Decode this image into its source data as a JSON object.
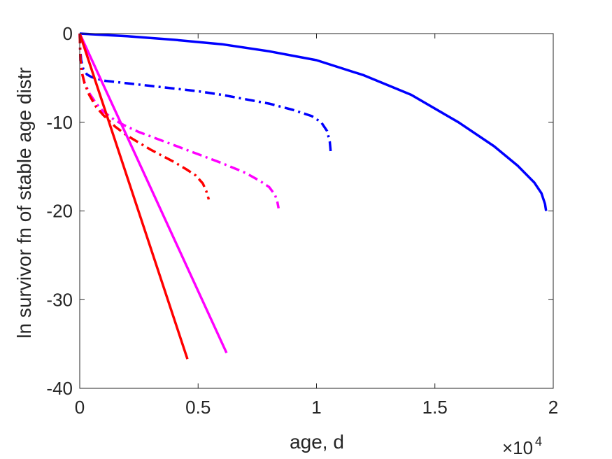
{
  "chart_data": {
    "type": "line",
    "xlabel": "age, d",
    "ylabel": "ln survivor fn of stable age distr",
    "x_exponent_label": "×10",
    "x_exponent_power": "4",
    "xlim": [
      0,
      20000
    ],
    "ylim": [
      -40,
      0
    ],
    "x_ticks": [
      0,
      5000,
      10000,
      15000,
      20000
    ],
    "x_tick_labels": [
      "0",
      "0.5",
      "1",
      "1.5",
      "2"
    ],
    "y_ticks": [
      0,
      -10,
      -20,
      -30,
      -40
    ],
    "y_tick_labels": [
      "0",
      "-10",
      "-20",
      "-30",
      "-40"
    ],
    "grid": false,
    "series": [
      {
        "color": "#0000ff",
        "style": "solid",
        "x": [
          0,
          1000,
          2000,
          4000,
          6000,
          8000,
          10000,
          12000,
          14000,
          16000,
          17500,
          18500,
          19200,
          19500,
          19650,
          19700
        ],
        "y": [
          0,
          -0.15,
          -0.3,
          -0.7,
          -1.2,
          -2.0,
          -3.0,
          -4.7,
          -6.9,
          -10.0,
          -12.7,
          -14.9,
          -16.8,
          -18.0,
          -19.2,
          -20.0
        ]
      },
      {
        "color": "#0000ff",
        "style": "dashdot",
        "x": [
          0,
          20,
          60,
          150,
          300,
          500,
          1000,
          2000,
          3000,
          4000,
          5000,
          6000,
          7000,
          8000,
          9000,
          9800,
          10200,
          10450,
          10560,
          10600
        ],
        "y": [
          0,
          -1.8,
          -3.0,
          -4.0,
          -4.6,
          -4.9,
          -5.3,
          -5.6,
          -5.9,
          -6.2,
          -6.5,
          -6.9,
          -7.4,
          -7.9,
          -8.6,
          -9.3,
          -10.0,
          -11.0,
          -12.2,
          -13.3
        ]
      },
      {
        "color": "#ff00ff",
        "style": "dashdot",
        "x": [
          0,
          30,
          100,
          200,
          400,
          700,
          1000,
          1500,
          2000,
          2500,
          3000,
          4000,
          5000,
          6000,
          7000,
          7600,
          8000,
          8250,
          8350,
          8400
        ],
        "y": [
          0,
          -3.0,
          -4.5,
          -5.5,
          -6.7,
          -7.9,
          -8.8,
          -9.8,
          -10.5,
          -11.1,
          -11.6,
          -12.6,
          -13.6,
          -14.6,
          -15.7,
          -16.6,
          -17.3,
          -18.2,
          -19.0,
          -19.7
        ]
      },
      {
        "color": "#ff0000",
        "style": "dashdot",
        "x": [
          0,
          30,
          100,
          200,
          400,
          700,
          1000,
          1500,
          2000,
          2500,
          3000,
          3500,
          4000,
          4500,
          4900,
          5200,
          5350,
          5450
        ],
        "y": [
          0,
          -3.0,
          -4.5,
          -5.6,
          -6.9,
          -8.3,
          -9.2,
          -10.5,
          -11.5,
          -12.3,
          -13.1,
          -13.8,
          -14.5,
          -15.3,
          -16.0,
          -16.9,
          -17.8,
          -18.7
        ]
      },
      {
        "color": "#ff00ff",
        "style": "solid",
        "x": [
          0,
          6200
        ],
        "y": [
          0,
          -36.0
        ]
      },
      {
        "color": "#ff0000",
        "style": "solid",
        "x": [
          0,
          4550
        ],
        "y": [
          0,
          -36.7
        ]
      }
    ]
  }
}
